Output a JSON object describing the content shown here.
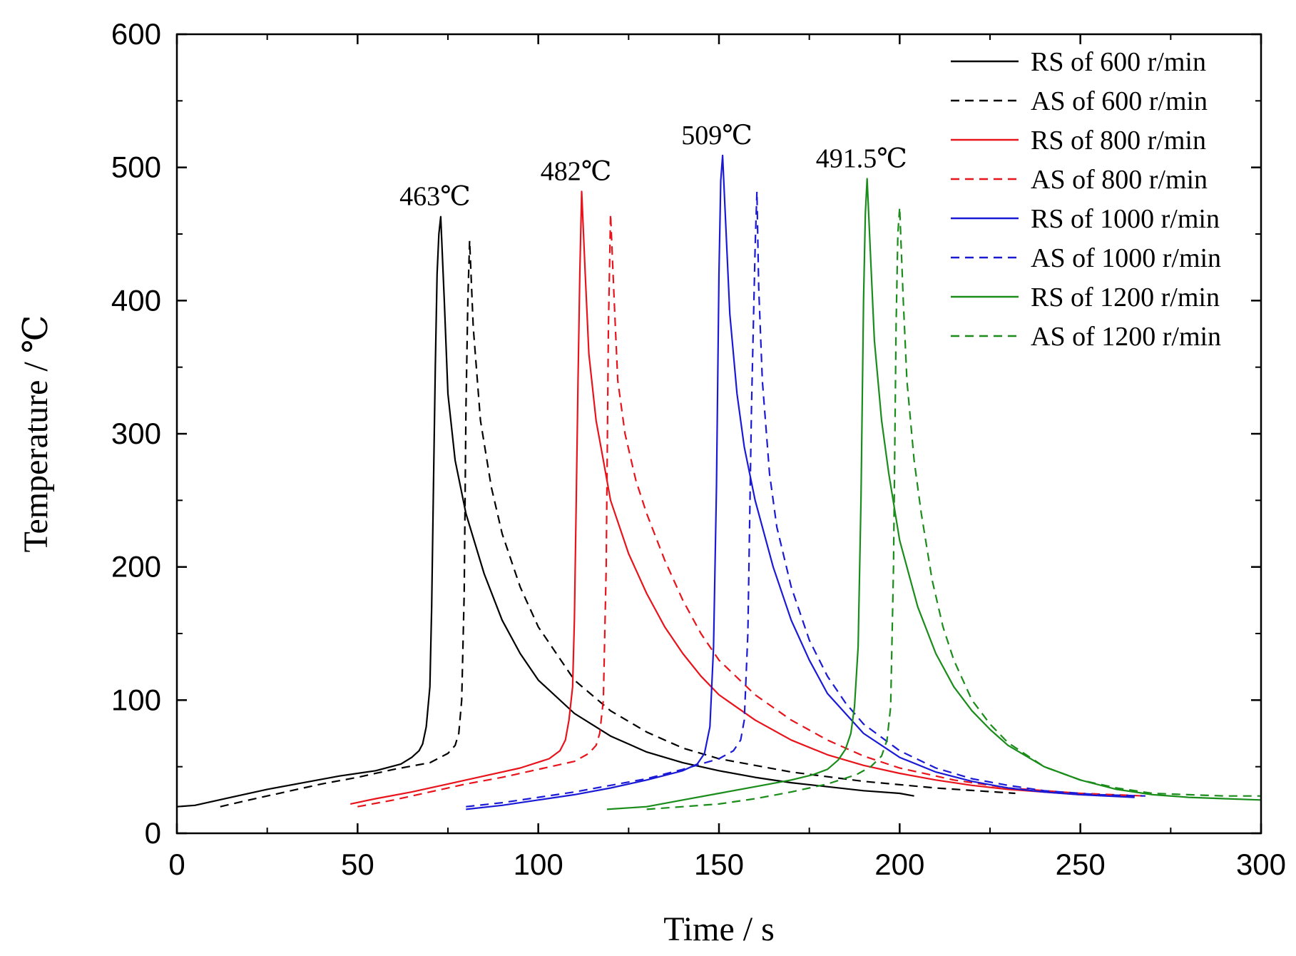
{
  "chart_data": {
    "type": "line",
    "title": "",
    "xlabel": "Time / s",
    "ylabel": "Temperature / ℃",
    "xlim": [
      0,
      300
    ],
    "ylim": [
      0,
      600
    ],
    "xticks": [
      0,
      50,
      100,
      150,
      200,
      250,
      300
    ],
    "yticks": [
      0,
      100,
      200,
      300,
      400,
      500,
      600
    ],
    "xtick_labels": [
      "0",
      "50",
      "100",
      "150",
      "200",
      "250",
      "300"
    ],
    "ytick_labels": [
      "0",
      "100",
      "200",
      "300",
      "400",
      "500",
      "600"
    ],
    "grid": false,
    "legend_position": "top-right",
    "series": [
      {
        "name": "RS of 600 r/min",
        "color": "#000000",
        "style": "solid",
        "x": [
          0,
          5,
          15,
          25,
          35,
          45,
          55,
          62,
          65,
          67,
          68,
          69,
          70,
          70.5,
          71,
          71.5,
          72,
          72.5,
          73,
          74,
          75,
          77,
          80,
          85,
          90,
          95,
          100,
          110,
          120,
          130,
          140,
          150,
          160,
          170,
          180,
          190,
          200,
          204
        ],
        "y": [
          20,
          21,
          27,
          33,
          38,
          43,
          47,
          52,
          57,
          62,
          67,
          80,
          110,
          170,
          260,
          350,
          420,
          450,
          463,
          400,
          330,
          280,
          240,
          195,
          160,
          135,
          115,
          90,
          73,
          61,
          53,
          47,
          42,
          38,
          35,
          32,
          30,
          28
        ]
      },
      {
        "name": "AS of 600 r/min",
        "color": "#000000",
        "style": "dashed",
        "x": [
          12,
          20,
          30,
          40,
          50,
          60,
          70,
          75,
          77,
          78,
          78.8,
          79.5,
          80,
          80.5,
          81,
          82,
          84,
          87,
          90,
          95,
          100,
          110,
          120,
          130,
          140,
          150,
          170,
          190,
          210,
          232
        ],
        "y": [
          20,
          25,
          31,
          37,
          42,
          48,
          53,
          60,
          66,
          75,
          100,
          180,
          320,
          400,
          445,
          380,
          310,
          260,
          225,
          185,
          155,
          115,
          92,
          76,
          64,
          56,
          46,
          39,
          34,
          30
        ]
      },
      {
        "name": "RS of 800 r/min",
        "color": "#e8131b",
        "style": "solid",
        "x": [
          48,
          55,
          65,
          75,
          85,
          95,
          103,
          106,
          107.5,
          108.5,
          109.5,
          110,
          110.5,
          111,
          111.5,
          112,
          113,
          114,
          116,
          118,
          120,
          125,
          130,
          135,
          140,
          145,
          150,
          160,
          170,
          180,
          190,
          200,
          210,
          220,
          230,
          240,
          250,
          265
        ],
        "y": [
          22,
          26,
          31,
          37,
          43,
          49,
          56,
          62,
          70,
          85,
          110,
          160,
          250,
          340,
          420,
          482,
          420,
          360,
          310,
          280,
          250,
          210,
          180,
          155,
          135,
          118,
          104,
          85,
          70,
          59,
          51,
          45,
          40,
          36,
          33,
          31,
          29,
          28
        ]
      },
      {
        "name": "AS of 800 r/min",
        "color": "#e8131b",
        "style": "dashed",
        "x": [
          50,
          60,
          70,
          80,
          90,
          100,
          110,
          114,
          116,
          117,
          118,
          118.8,
          119.4,
          120,
          121,
          122,
          124,
          127,
          130,
          135,
          140,
          145,
          150,
          160,
          170,
          180,
          190,
          200,
          215,
          230,
          250,
          268
        ],
        "y": [
          20,
          25,
          31,
          37,
          42,
          48,
          54,
          60,
          66,
          75,
          100,
          200,
          380,
          465,
          400,
          340,
          300,
          265,
          240,
          205,
          175,
          150,
          130,
          104,
          85,
          70,
          58,
          49,
          40,
          34,
          30,
          28
        ]
      },
      {
        "name": "RS of 1000 r/min",
        "color": "#1a1ad6",
        "style": "solid",
        "x": [
          80,
          90,
          100,
          110,
          120,
          130,
          140,
          144,
          146,
          147.5,
          148.5,
          149.3,
          150,
          150.5,
          151,
          152,
          153,
          155,
          157,
          160,
          165,
          170,
          175,
          180,
          190,
          200,
          210,
          220,
          230,
          240,
          250,
          265
        ],
        "y": [
          18,
          21,
          25,
          29,
          34,
          40,
          47,
          52,
          60,
          80,
          140,
          260,
          420,
          490,
          509,
          450,
          390,
          330,
          290,
          250,
          200,
          160,
          130,
          105,
          75,
          57,
          46,
          39,
          34,
          31,
          29,
          27
        ]
      },
      {
        "name": "AS of 1000 r/min",
        "color": "#1a1ad6",
        "style": "dashed",
        "x": [
          80,
          90,
          100,
          110,
          120,
          130,
          140,
          150,
          154,
          156,
          157,
          158,
          159,
          160,
          160.5,
          161,
          162,
          164,
          166,
          170,
          175,
          180,
          185,
          190,
          200,
          210,
          220,
          230,
          240,
          255,
          268
        ],
        "y": [
          20,
          23,
          27,
          31,
          36,
          41,
          48,
          56,
          62,
          70,
          85,
          150,
          320,
          440,
          482,
          410,
          340,
          270,
          230,
          185,
          145,
          118,
          98,
          82,
          62,
          49,
          41,
          36,
          32,
          29,
          28
        ]
      },
      {
        "name": "RS of 1200 r/min",
        "color": "#1a8c1a",
        "style": "solid",
        "x": [
          119,
          130,
          140,
          150,
          160,
          170,
          176,
          180,
          183,
          185,
          186.5,
          187.5,
          188.5,
          189.3,
          190,
          190.5,
          191,
          192,
          193,
          195,
          197,
          200,
          205,
          210,
          215,
          220,
          225,
          230,
          240,
          250,
          260,
          270,
          280,
          290,
          300
        ],
        "y": [
          18,
          20,
          25,
          30,
          35,
          40,
          44,
          48,
          55,
          63,
          75,
          95,
          140,
          250,
          400,
          465,
          491.5,
          430,
          370,
          310,
          270,
          220,
          170,
          135,
          110,
          92,
          78,
          66,
          50,
          40,
          33,
          29,
          27,
          26,
          25
        ]
      },
      {
        "name": "AS of 1200 r/min",
        "color": "#1a8c1a",
        "style": "dashed",
        "x": [
          130,
          140,
          150,
          160,
          170,
          180,
          188,
          192,
          195,
          196.5,
          197.5,
          198.3,
          199,
          199.5,
          200,
          201,
          202,
          204,
          206,
          209,
          212,
          215,
          220,
          225,
          230,
          240,
          250,
          260,
          270,
          280,
          290,
          300
        ],
        "y": [
          18,
          20,
          22,
          26,
          31,
          37,
          44,
          50,
          58,
          70,
          95,
          200,
          380,
          450,
          470,
          400,
          340,
          280,
          240,
          190,
          155,
          130,
          100,
          82,
          68,
          50,
          40,
          34,
          30,
          29,
          28,
          28
        ]
      }
    ],
    "annotations": [
      {
        "text": "463℃",
        "x": 73,
        "y": 463
      },
      {
        "text": "482℃",
        "x": 112,
        "y": 482
      },
      {
        "text": "509℃",
        "x": 151,
        "y": 509
      },
      {
        "text": "491.5℃",
        "x": 191,
        "y": 491.5
      }
    ]
  }
}
